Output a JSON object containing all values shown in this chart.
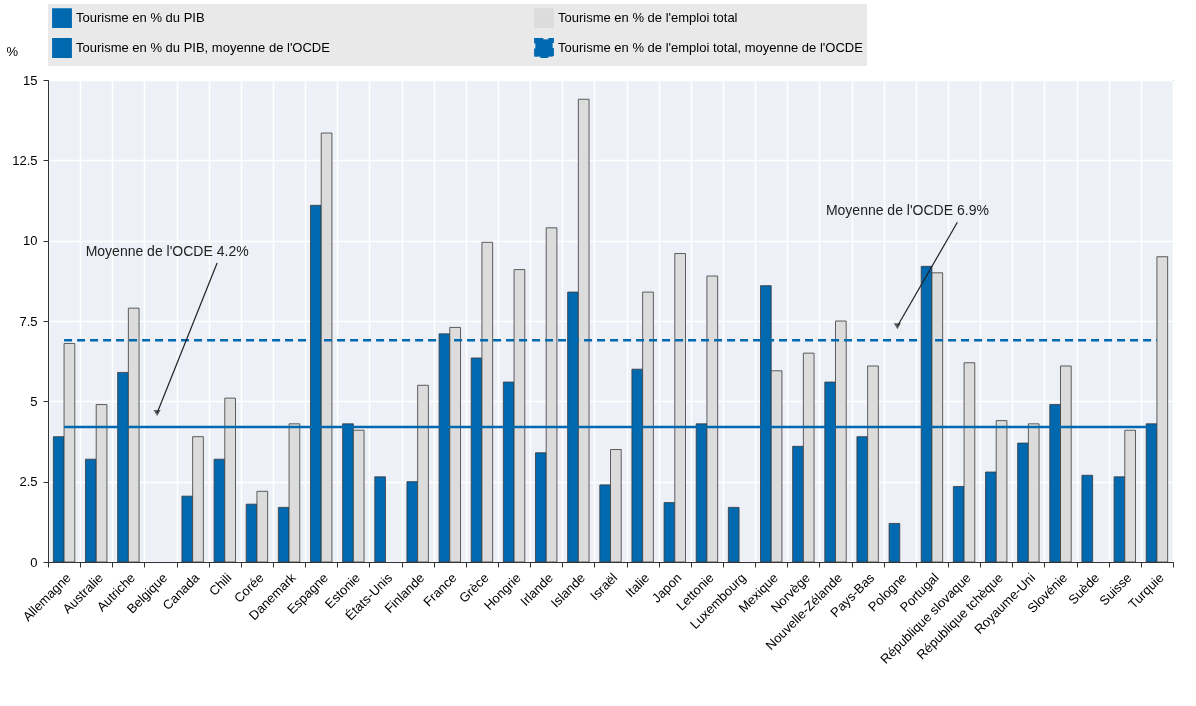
{
  "chart_data": {
    "type": "bar",
    "ylabel": "%",
    "categories": [
      "Allemagne",
      "Australie",
      "Autriche",
      "Belgique",
      "Canada",
      "Chili",
      "Corée",
      "Danemark",
      "Espagne",
      "Estonie",
      "États-Unis",
      "Finlande",
      "France",
      "Grèce",
      "Hongrie",
      "Irlande",
      "Islande",
      "Israël",
      "Italie",
      "Japon",
      "Lettonie",
      "Luxembourg",
      "Mexique",
      "Norvège",
      "Nouvelle-Zélande",
      "Pays-Bas",
      "Pologne",
      "Portugal",
      "République slovaque",
      "République tchèque",
      "Royaume-Uni",
      "Slovénie",
      "Suède",
      "Suisse",
      "Turquie"
    ],
    "series": [
      {
        "name": "Tourisme en % du PIB",
        "color": "#0069b0",
        "values": [
          3.9,
          3.2,
          5.9,
          null,
          2.05,
          3.2,
          1.8,
          1.7,
          11.1,
          4.3,
          2.65,
          2.5,
          7.1,
          6.35,
          5.6,
          3.4,
          8.4,
          2.4,
          6.0,
          1.85,
          4.3,
          1.7,
          8.6,
          3.6,
          5.6,
          3.9,
          1.2,
          9.2,
          2.35,
          2.8,
          3.7,
          4.9,
          2.7,
          2.65,
          4.3
        ]
      },
      {
        "name": "Tourisme en % de l'emploi total",
        "color": "#dcdcdc",
        "values": [
          6.8,
          4.9,
          7.9,
          null,
          3.9,
          5.1,
          2.2,
          4.3,
          13.35,
          4.1,
          null,
          5.5,
          7.3,
          9.95,
          9.1,
          10.4,
          14.4,
          3.5,
          8.4,
          9.6,
          8.9,
          null,
          5.95,
          6.5,
          7.5,
          6.1,
          null,
          9.0,
          6.2,
          4.4,
          4.3,
          6.1,
          null,
          4.1,
          9.5
        ]
      },
      {
        "name": "Tourisme en % du PIB, moyenne de l'OCDE",
        "type": "line",
        "line_style": "solid",
        "color": "#0069b0",
        "values": [
          4.2,
          4.2,
          4.2,
          4.2,
          4.2,
          4.2,
          4.2,
          4.2,
          4.2,
          4.2,
          4.2,
          4.2,
          4.2,
          4.2,
          4.2,
          4.2,
          4.2,
          4.2,
          4.2,
          4.2,
          4.2,
          4.2,
          4.2,
          4.2,
          4.2,
          4.2,
          4.2,
          4.2,
          4.2,
          4.2,
          4.2,
          4.2,
          4.2,
          4.2,
          4.2
        ]
      },
      {
        "name": "Tourisme en % de l'emploi total, moyenne de l'OCDE",
        "type": "line",
        "line_style": "dashed",
        "color": "#0069b0",
        "values": [
          6.9,
          6.9,
          6.9,
          6.9,
          6.9,
          6.9,
          6.9,
          6.9,
          6.9,
          6.9,
          6.9,
          6.9,
          6.9,
          6.9,
          6.9,
          6.9,
          6.9,
          6.9,
          6.9,
          6.9,
          6.9,
          6.9,
          6.9,
          6.9,
          6.9,
          6.9,
          6.9,
          6.9,
          6.9,
          6.9,
          6.9,
          6.9,
          6.9,
          6.9,
          6.9
        ]
      }
    ],
    "ylim": [
      0,
      15
    ],
    "yticks": [
      0,
      2.5,
      5,
      7.5,
      10,
      12.5,
      15
    ],
    "grid": true,
    "legend": "top",
    "annotations": [
      "Moyenne de l'OCDE 4.2%",
      "Moyenne de l'OCDE 6.9%"
    ]
  }
}
